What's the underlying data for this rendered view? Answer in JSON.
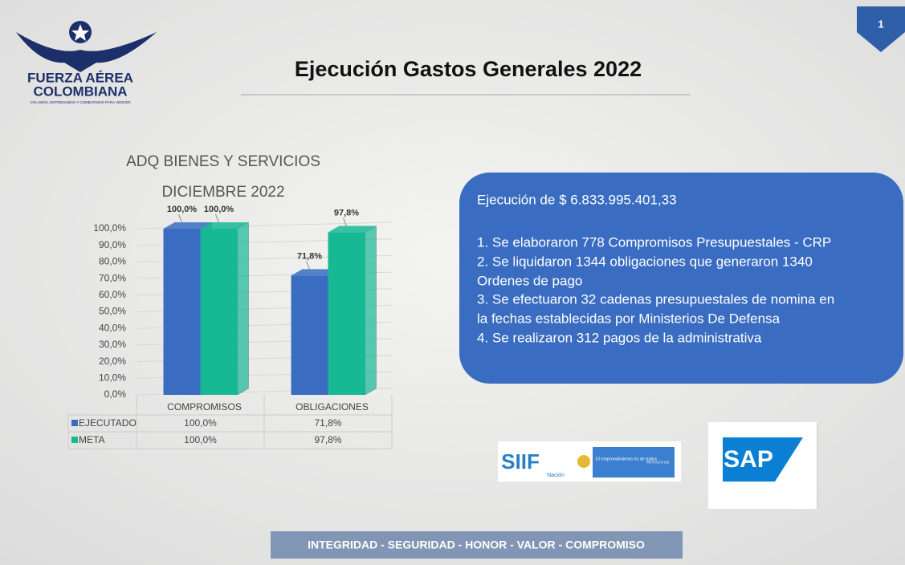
{
  "header": {
    "title": "Ejecución Gastos Generales 2022",
    "page_number": "1",
    "logo": {
      "line1": "FUERZA AÉREA",
      "line2": "COLOMBIANA",
      "motto": "VOLAMOS, ENTRENAMOS Y COMBATIMOS PARA VENCER"
    }
  },
  "chart_data": {
    "type": "bar",
    "title": [
      "ADQ BIENES Y SERVICIOS",
      "DICIEMBRE 2022"
    ],
    "categories": [
      "COMPROMISOS",
      "OBLIGACIONES"
    ],
    "series": [
      {
        "name": "EJECUTADO",
        "color": "#3a6dc2",
        "values": [
          100,
          71.8
        ],
        "value_labels": [
          "100,0%",
          "71,8%"
        ]
      },
      {
        "name": "META",
        "color": "#17b894",
        "values": [
          100,
          97.8
        ],
        "value_labels": [
          "100,0%",
          "97,8%"
        ]
      }
    ],
    "ylim": [
      0,
      100
    ],
    "yticks": [
      {
        "value": 0,
        "label": "0,0%"
      },
      {
        "value": 10,
        "label": "10,0%"
      },
      {
        "value": 20,
        "label": "20,0%"
      },
      {
        "value": 30,
        "label": "30,0%"
      },
      {
        "value": 40,
        "label": "40,0%"
      },
      {
        "value": 50,
        "label": "50,0%"
      },
      {
        "value": 60,
        "label": "60,0%"
      },
      {
        "value": 70,
        "label": "70,0%"
      },
      {
        "value": 80,
        "label": "80,0%"
      },
      {
        "value": 90,
        "label": "90,0%"
      },
      {
        "value": 100,
        "label": "100,0%"
      }
    ],
    "grid": true,
    "data_table": true
  },
  "info_box": {
    "heading": "Ejecución de $ 6.833.995.401,33",
    "lines": [
      "1. Se elaboraron 778 Compromisos Presupuestales - CRP",
      "2. Se liquidaron 1344 obligaciones que generaron 1340",
      "Ordenes de pago",
      "3. Se efectuaron 32 cadenas presupuestales de nomina en",
      "la fechas establecidas por Ministerios De Defensa",
      "4. Se realizaron 312 pagos de la administrativa"
    ]
  },
  "logos": {
    "siif": "SIIF",
    "siif_sub": "Nación",
    "gov": "El emprendimiento es de todos",
    "ministry": "Minhacienda",
    "sap": "SAP"
  },
  "footer": "INTEGRIDAD - SEGURIDAD - HONOR - VALOR - COMPROMISO"
}
